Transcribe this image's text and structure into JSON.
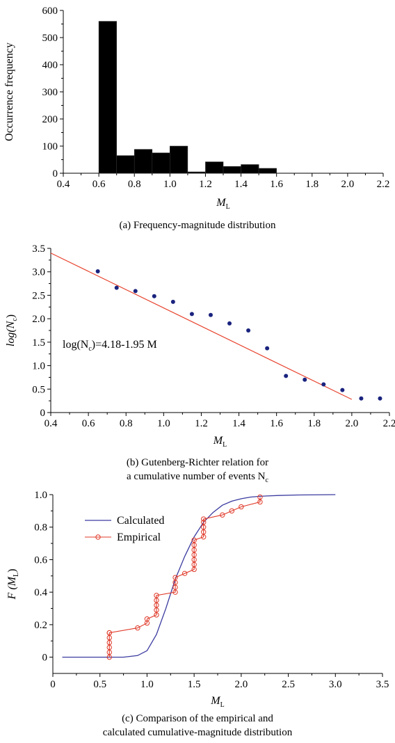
{
  "chart_data": [
    {
      "id": "a",
      "type": "bar",
      "caption": "(a) Frequency-magnitude distribution",
      "ylabel": "Occurrence frequency",
      "xlabel": "M",
      "xlabel_sub": "L",
      "xlim": [
        0.4,
        2.2
      ],
      "ylim": [
        0,
        600
      ],
      "xticks": [
        "0.4",
        "0.6",
        "0.8",
        "1.0",
        "1.2",
        "1.4",
        "1.6",
        "1.8",
        "2.0",
        "2.2"
      ],
      "yticks": [
        "0",
        "100",
        "200",
        "300",
        "400",
        "500",
        "600"
      ],
      "bin_width": 0.1,
      "bins": [
        0.6,
        0.7,
        0.8,
        0.9,
        1.0,
        1.1,
        1.2,
        1.3,
        1.4,
        1.5
      ],
      "values": [
        560,
        65,
        88,
        75,
        100,
        5,
        42,
        25,
        32,
        18
      ],
      "color": "#000000"
    },
    {
      "id": "b",
      "type": "scatter",
      "caption_line1": "(b) Gutenberg-Richter relation for",
      "caption_line2": "a cumulative number of events N",
      "caption_sub": "c",
      "ylabel": "log(N",
      "ylabel_sub": "c",
      "ylabel_end": ")",
      "xlabel": "M",
      "xlabel_sub": "L",
      "xlim": [
        0.4,
        2.2
      ],
      "ylim": [
        0,
        3.5
      ],
      "xticks": [
        "0.4",
        "0.6",
        "0.8",
        "1.0",
        "1.2",
        "1.4",
        "1.6",
        "1.8",
        "2.0",
        "2.2"
      ],
      "yticks": [
        "0",
        "0.5",
        "1.0",
        "1.5",
        "2.0",
        "2.5",
        "3.0",
        "3.5"
      ],
      "x": [
        0.65,
        0.75,
        0.85,
        0.95,
        1.05,
        1.15,
        1.25,
        1.35,
        1.45,
        1.55,
        1.65,
        1.75,
        1.85,
        1.95,
        2.05,
        2.15
      ],
      "y": [
        3.01,
        2.66,
        2.59,
        2.48,
        2.36,
        2.1,
        2.08,
        1.9,
        1.75,
        1.37,
        0.78,
        0.7,
        0.6,
        0.48,
        0.3,
        0.3
      ],
      "fit": {
        "intercept": 4.18,
        "slope": -1.95,
        "x_range": [
          0.4,
          2.0
        ]
      },
      "annotation_pre": "log(N",
      "annotation_sub": "c",
      "annotation_post": ")=4.18-1.95 M",
      "point_color": "#1a237e",
      "line_color": "#e8432e"
    },
    {
      "id": "c",
      "type": "line",
      "caption_line1": "(c) Comparison of the empirical and",
      "caption_line2": "calculated cumulative-magnitude distribution",
      "ylabel": "F (M",
      "ylabel_sub": "L",
      "ylabel_end": ")",
      "xlabel": "M",
      "xlabel_sub": "L",
      "xlim": [
        0,
        3.5
      ],
      "ylim": [
        -0.1,
        1.0
      ],
      "xticks": [
        "0",
        "0.5",
        "1.0",
        "1.5",
        "2.0",
        "2.5",
        "3.0",
        "3.5"
      ],
      "yticks": [
        "0",
        "0.2",
        "0.4",
        "0.6",
        "0.8",
        "1.0"
      ],
      "series": [
        {
          "name": "Calculated",
          "color": "#3a3aa0",
          "x": [
            0.1,
            0.5,
            0.75,
            0.9,
            1.0,
            1.1,
            1.2,
            1.3,
            1.4,
            1.5,
            1.6,
            1.7,
            1.8,
            1.9,
            2.0,
            2.1,
            2.2,
            2.4,
            2.6,
            3.0
          ],
          "y": [
            0,
            0,
            0,
            0.01,
            0.04,
            0.14,
            0.3,
            0.48,
            0.62,
            0.74,
            0.83,
            0.89,
            0.935,
            0.96,
            0.975,
            0.985,
            0.99,
            0.995,
            0.998,
            1.0
          ]
        },
        {
          "name": "Empirical",
          "color": "#e03a2a",
          "x": [
            0.6,
            0.6,
            0.6,
            0.6,
            0.6,
            0.6,
            0.6,
            0.9,
            1.0,
            1.0,
            1.1,
            1.1,
            1.1,
            1.1,
            1.1,
            1.3,
            1.3,
            1.3,
            1.3,
            1.4,
            1.5,
            1.5,
            1.5,
            1.5,
            1.5,
            1.5,
            1.5,
            1.6,
            1.6,
            1.6,
            1.6,
            1.6,
            1.8,
            1.9,
            2.0,
            2.2,
            2.2
          ],
          "y": [
            0,
            0.03,
            0.06,
            0.09,
            0.12,
            0.15,
            0.15,
            0.18,
            0.21,
            0.235,
            0.26,
            0.29,
            0.32,
            0.35,
            0.38,
            0.4,
            0.43,
            0.46,
            0.49,
            0.515,
            0.54,
            0.57,
            0.6,
            0.63,
            0.66,
            0.69,
            0.72,
            0.74,
            0.77,
            0.8,
            0.83,
            0.85,
            0.875,
            0.9,
            0.925,
            0.955,
            0.985
          ]
        }
      ],
      "legend_position": "top-left"
    }
  ]
}
